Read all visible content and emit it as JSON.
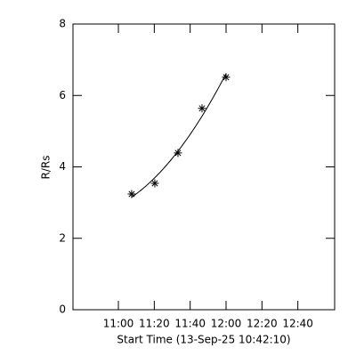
{
  "chart_data": {
    "type": "scatter",
    "y_label": "R/Rs",
    "x_label": "Start Time (13-Sep-25 10:42:10)",
    "x": [
      667.4,
      680.3,
      693.2,
      706.6,
      720
    ],
    "values": [
      3.24,
      3.54,
      4.39,
      5.64,
      6.51
    ],
    "color": "#000000",
    "fit": "quadratic",
    "xlim": [
      634.7,
      780.5
    ],
    "xticks": [
      {
        "value": 660,
        "label": "11:00"
      },
      {
        "value": 680,
        "label": "11:20"
      },
      {
        "value": 700,
        "label": "11:40"
      },
      {
        "value": 720,
        "label": "12:00"
      },
      {
        "value": 740,
        "label": "12:20"
      },
      {
        "value": 760,
        "label": "12:40"
      }
    ],
    "ylim": [
      0,
      8
    ],
    "yticks": [
      0,
      2,
      4,
      6,
      8
    ]
  }
}
